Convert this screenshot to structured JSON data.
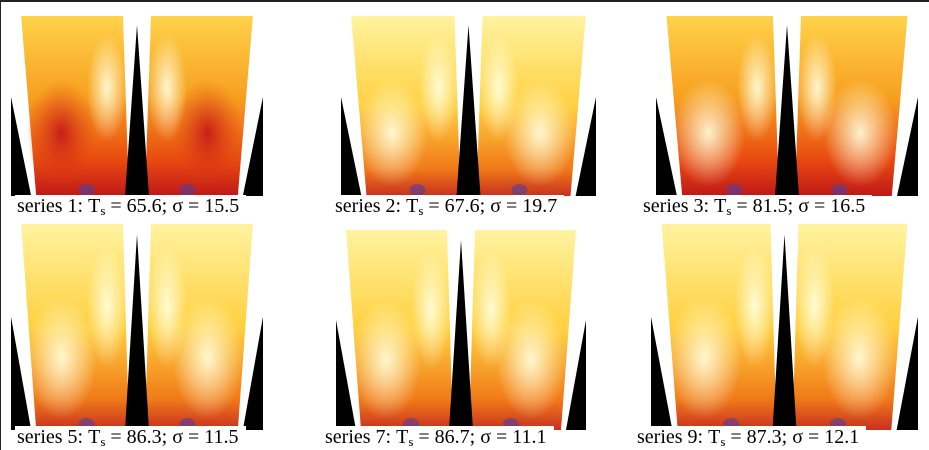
{
  "panels": [
    {
      "name": "series 1:",
      "t": "T",
      "sub": "s",
      "ts": "= 65.6;",
      "sigma": "σ = 15.5"
    },
    {
      "name": "series 2:",
      "t": "T",
      "sub": "s",
      "ts": "= 67.6;",
      "sigma": "σ = 19.7"
    },
    {
      "name": "series 3:",
      "t": "T",
      "sub": "s",
      "ts": "= 81.5;",
      "sigma": "σ = 16.5"
    },
    {
      "name": "series 5:",
      "t": "T",
      "sub": "s",
      "ts": "= 86.3;",
      "sigma": "σ = 11.5"
    },
    {
      "name": "series 7:",
      "t": "T",
      "sub": "s",
      "ts": "= 86.7;",
      "sigma": "σ = 11.1"
    },
    {
      "name": "series 9:",
      "t": "T",
      "sub": "s",
      "ts": "= 87.3;",
      "sigma": "σ = 12.1"
    }
  ]
}
